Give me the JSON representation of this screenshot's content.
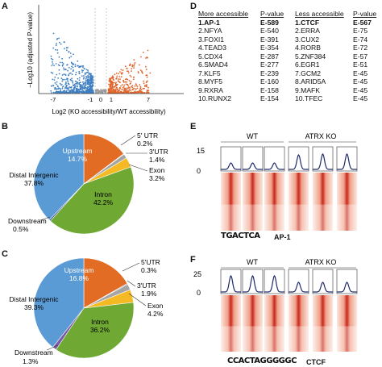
{
  "panels": {
    "A": "A",
    "B": "B",
    "C": "C",
    "D": "D",
    "E": "E",
    "F": "F"
  },
  "panelA": {
    "ylabel": "−Log10 (adjusted P-value)",
    "xlabel": "Log2 (KO accessibility/WT accessibility)",
    "ticks": [
      "-7",
      "-1",
      "0",
      "1",
      "7"
    ]
  },
  "panelD": {
    "left_header": "More accessible",
    "right_header": "Less accessible",
    "pvalue_header": "P-value",
    "more": [
      {
        "name": "1.AP-1",
        "p": "E-589"
      },
      {
        "name": "2.NFYA",
        "p": "E-540"
      },
      {
        "name": "3.FOXI1",
        "p": "E-391"
      },
      {
        "name": "4.TEAD3",
        "p": "E-354"
      },
      {
        "name": "5.CDX4",
        "p": "E-287"
      },
      {
        "name": "6.SMAD4",
        "p": "E-277"
      },
      {
        "name": "7.KLF5",
        "p": "E-239"
      },
      {
        "name": "8.MYF5",
        "p": "E-160"
      },
      {
        "name": "9.RXRA",
        "p": "E-158"
      },
      {
        "name": "10.RUNX2",
        "p": "E-154"
      }
    ],
    "less": [
      {
        "name": "1.CTCF",
        "p": "E-567"
      },
      {
        "name": "2.ERRA",
        "p": "E-75"
      },
      {
        "name": "3.CUX2",
        "p": "E-74"
      },
      {
        "name": "4.RORB",
        "p": "E-72"
      },
      {
        "name": "5.ZNF384",
        "p": "E-57"
      },
      {
        "name": "6.EGR1",
        "p": "E-51"
      },
      {
        "name": "7.GCM2",
        "p": "E-45"
      },
      {
        "name": "8.ARID5A",
        "p": "E-45"
      },
      {
        "name": "9.MAFK",
        "p": "E-45"
      },
      {
        "name": "10.TFEC",
        "p": "E-45"
      }
    ]
  },
  "pieB": {
    "slices": [
      {
        "name": "Upstream",
        "value": 14.7,
        "color": "#e36c25",
        "label": "Upstream",
        "pct": "14.7%"
      },
      {
        "name": "5' UTR",
        "value": 0.2,
        "color": "#7f7f7f",
        "label": "5' UTR",
        "pct": "0.2%"
      },
      {
        "name": "3' UTR",
        "value": 1.4,
        "color": "#a5a5a5",
        "label": "3'UTR",
        "pct": "1.4%"
      },
      {
        "name": "Exon",
        "value": 3.2,
        "color": "#f5b923",
        "label": "Exon",
        "pct": "3.2%"
      },
      {
        "name": "Intron",
        "value": 42.2,
        "color": "#6fa832",
        "label": "Intron",
        "pct": "42.2%"
      },
      {
        "name": "Downstream",
        "value": 0.5,
        "color": "#2d4a8a",
        "label": "Downstream",
        "pct": "0.5%"
      },
      {
        "name": "Distal Intergenic",
        "value": 37.8,
        "color": "#5b9bd5",
        "label": "Distal Intergenic",
        "pct": "37.8%"
      }
    ]
  },
  "pieC": {
    "slices": [
      {
        "name": "Upstream",
        "value": 16.8,
        "color": "#e36c25",
        "label": "Upstream",
        "pct": "16.8%"
      },
      {
        "name": "5' UTR",
        "value": 0.3,
        "color": "#7f7f7f",
        "label": "5'UTR",
        "pct": "0.3%"
      },
      {
        "name": "3' UTR",
        "value": 1.9,
        "color": "#a5a5a5",
        "label": "3'UTR",
        "pct": "1.9%"
      },
      {
        "name": "Exon",
        "value": 4.2,
        "color": "#f5b923",
        "label": "Exon",
        "pct": "4.2%"
      },
      {
        "name": "Intron",
        "value": 36.2,
        "color": "#6fa832",
        "label": "Intron",
        "pct": "36.2%"
      },
      {
        "name": "Downstream",
        "value": 1.3,
        "color": "#7a5aa6",
        "label": "Downstream",
        "pct": "1.3%"
      },
      {
        "name": "Distal Intergenic",
        "value": 39.3,
        "color": "#5b9bd5",
        "label": "Distal Intergenic",
        "pct": "39.3%"
      }
    ]
  },
  "panelE": {
    "wt": "WT",
    "ko": "ATRX KO",
    "ymax": "15",
    "ymin": "0",
    "motif": "AP-1",
    "motif_seq": "TGACTCA"
  },
  "panelF": {
    "wt": "WT",
    "ko": "ATRX KO",
    "ymax": "25",
    "ymin": "0",
    "motif": "CTCF",
    "motif_seq": "CCACTAGGGGGC"
  }
}
